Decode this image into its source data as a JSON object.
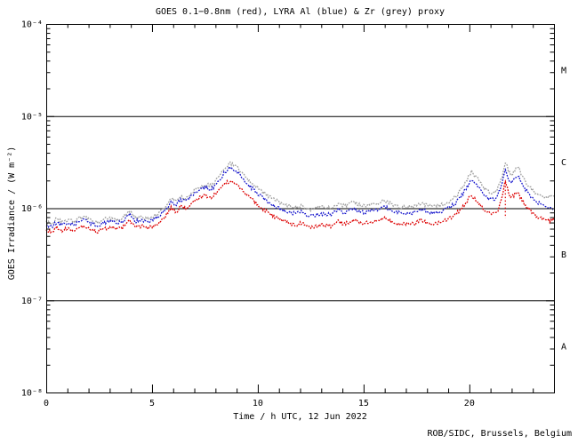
{
  "header": {
    "title": "GOES 0.1−0.8nm (red), LYRA Al (blue) & Zr (grey) proxy"
  },
  "footer": {
    "credit": "ROB/SIDC, Brussels, Belgium"
  },
  "chart_data": {
    "type": "line",
    "title": "GOES 0.1−0.8nm (red), LYRA Al (blue) & Zr (grey) proxy",
    "xlabel": "Time / h UTC, 12 Jun 2022",
    "ylabel": "GOES Irradiance / (W m⁻²)",
    "x_range_hours": [
      0,
      24
    ],
    "x_major_tick_hours": [
      0,
      5,
      10,
      15,
      20
    ],
    "x_major_tick_labels": [
      "0",
      "5",
      "10",
      "15",
      "20"
    ],
    "x_minor_step_hours": 1,
    "y_scale": "log",
    "y_range_wm2": [
      1e-08,
      0.0001
    ],
    "y_decade_exponents": [
      -4,
      -5,
      -6,
      -7,
      -8
    ],
    "y_decade_labels": [
      "10⁻⁴",
      "10⁻⁵",
      "10⁻⁶",
      "10⁻⁷",
      "10⁻⁸"
    ],
    "class_boundary_lines_wm2": [
      1e-05,
      1e-06,
      1e-07
    ],
    "flare_class_labels": [
      "M",
      "C",
      "B",
      "A"
    ],
    "grid": "off",
    "legend_position": "in-title",
    "colors": {
      "red": "#dd0000",
      "blue": "#1414cc",
      "grey": "#9e9e9e",
      "axis": "#000000"
    },
    "x_hours": [
      0,
      0.25,
      0.5,
      0.7,
      1.0,
      1.3,
      1.6,
      1.85,
      2.1,
      2.4,
      2.7,
      3.0,
      3.3,
      3.6,
      3.95,
      4.2,
      4.5,
      4.8,
      5.1,
      5.35,
      5.6,
      5.9,
      6.15,
      6.35,
      6.6,
      6.9,
      7.2,
      7.5,
      7.8,
      8.0,
      8.2,
      8.45,
      8.7,
      8.95,
      9.2,
      9.5,
      9.8,
      10.2,
      10.6,
      11.0,
      11.4,
      11.8,
      12.1,
      12.4,
      12.8,
      13.1,
      13.5,
      13.8,
      14.1,
      14.55,
      14.9,
      15.3,
      15.6,
      16.0,
      16.4,
      16.8,
      17.1,
      17.4,
      17.7,
      18.0,
      18.4,
      18.8,
      19.1,
      19.4,
      19.7,
      20.1,
      20.4,
      20.7,
      21.0,
      21.3,
      21.55,
      21.7,
      21.85,
      22.0,
      22.15,
      22.3,
      22.5,
      22.75,
      23.0,
      23.3,
      23.6,
      23.8,
      24.0
    ],
    "series": [
      {
        "name": "LYRA Zr proxy",
        "color_key": "grey",
        "values_wm2": [
          7.1e-07,
          6.8e-07,
          7.7e-07,
          7.1e-07,
          7.5e-07,
          7.1e-07,
          7.9e-07,
          8e-07,
          7.4e-07,
          7e-07,
          7.5e-07,
          7.9e-07,
          7.6e-07,
          7.7e-07,
          9.3e-07,
          7.8e-07,
          8e-07,
          7.7e-07,
          8.2e-07,
          8.9e-07,
          1.02e-06,
          1.28e-06,
          1.17e-06,
          1.35e-06,
          1.28e-06,
          1.5e-06,
          1.68e-06,
          1.82e-06,
          1.74e-06,
          1.95e-06,
          2.25e-06,
          2.8e-06,
          3.1e-06,
          2.85e-06,
          2.5e-06,
          2.1e-06,
          1.8e-06,
          1.52e-06,
          1.3e-06,
          1.17e-06,
          1.08e-06,
          1.02e-06,
          1.07e-06,
          9.7e-07,
          1e-06,
          1.02e-06,
          1e-06,
          1.13e-06,
          1.05e-06,
          1.17e-06,
          1.06e-06,
          1.09e-06,
          1.11e-06,
          1.21e-06,
          1.09e-06,
          1.02e-06,
          1.06e-06,
          1.04e-06,
          1.14e-06,
          1.07e-06,
          1.04e-06,
          1.11e-06,
          1.2e-06,
          1.37e-06,
          1.7e-06,
          2.5e-06,
          2.05e-06,
          1.65e-06,
          1.48e-06,
          1.53e-06,
          2.2e-06,
          3.15e-06,
          2.55e-06,
          2.3e-06,
          2.55e-06,
          2.85e-06,
          2.2e-06,
          1.8e-06,
          1.55e-06,
          1.38e-06,
          1.3e-06,
          1.33e-06,
          1.4e-06
        ]
      },
      {
        "name": "LYRA Al proxy",
        "color_key": "blue",
        "values_wm2": [
          6.6e-07,
          6.3e-07,
          7.1e-07,
          6.6e-07,
          6.9e-07,
          6.6e-07,
          7.3e-07,
          7.4e-07,
          6.8e-07,
          6.5e-07,
          6.9e-07,
          7.3e-07,
          7e-07,
          7.1e-07,
          8.6e-07,
          7.2e-07,
          7.4e-07,
          7.1e-07,
          7.6e-07,
          8.2e-07,
          9.4e-07,
          1.18e-06,
          1.08e-06,
          1.25e-06,
          1.18e-06,
          1.38e-06,
          1.55e-06,
          1.68e-06,
          1.6e-06,
          1.8e-06,
          2.05e-06,
          2.5e-06,
          2.75e-06,
          2.55e-06,
          2.2e-06,
          1.85e-06,
          1.58e-06,
          1.32e-06,
          1.12e-06,
          1e-06,
          9.2e-07,
          8.7e-07,
          9.1e-07,
          8.2e-07,
          8.5e-07,
          8.7e-07,
          8.5e-07,
          9.7e-07,
          8.9e-07,
          1e-06,
          9e-07,
          9.3e-07,
          9.5e-07,
          1.04e-06,
          9.3e-07,
          8.7e-07,
          9.1e-07,
          8.9e-07,
          9.8e-07,
          9.1e-07,
          8.9e-07,
          9.5e-07,
          1.03e-06,
          1.17e-06,
          1.45e-06,
          2.05e-06,
          1.7e-06,
          1.38e-06,
          1.24e-06,
          1.28e-06,
          1.85e-06,
          2.65e-06,
          2.1e-06,
          1.9e-06,
          2.1e-06,
          2.3e-06,
          1.8e-06,
          1.5e-06,
          1.28e-06,
          1.13e-06,
          1.06e-06,
          1.03e-06,
          1e-06
        ]
      },
      {
        "name": "GOES 0.1-0.8nm",
        "color_key": "red",
        "values_wm2": [
          5.8e-07,
          5.5e-07,
          6.2e-07,
          5.7e-07,
          6e-07,
          5.7e-07,
          6.3e-07,
          6.4e-07,
          5.8e-07,
          5.5e-07,
          5.9e-07,
          6.3e-07,
          6e-07,
          6.1e-07,
          7.4e-07,
          6.2e-07,
          6.4e-07,
          6.1e-07,
          6.5e-07,
          7e-07,
          8e-07,
          1e-06,
          9.2e-07,
          1.05e-06,
          1e-06,
          1.15e-06,
          1.28e-06,
          1.38e-06,
          1.32e-06,
          1.45e-06,
          1.6e-06,
          1.85e-06,
          1.98e-06,
          1.85e-06,
          1.62e-06,
          1.4e-06,
          1.2e-06,
          1e-06,
          8.6e-07,
          7.6e-07,
          7e-07,
          6.6e-07,
          6.9e-07,
          6.2e-07,
          6.4e-07,
          6.6e-07,
          6.4e-07,
          7.3e-07,
          6.7e-07,
          7.5e-07,
          6.8e-07,
          7e-07,
          7.2e-07,
          7.9e-07,
          7e-07,
          6.6e-07,
          6.9e-07,
          6.7e-07,
          7.4e-07,
          6.9e-07,
          6.7e-07,
          7.2e-07,
          7.8e-07,
          8.8e-07,
          1.05e-06,
          1.38e-06,
          1.18e-06,
          9.6e-07,
          8.6e-07,
          8.8e-07,
          1.3e-06,
          2e-06,
          1.45e-06,
          1.3e-06,
          1.42e-06,
          1.5e-06,
          1.2e-06,
          1e-06,
          8.8e-07,
          7.9e-07,
          7.5e-07,
          7.3e-07,
          7.6e-07
        ]
      }
    ],
    "gap_marker": {
      "series": "GOES 0.1-0.8nm",
      "t_hours": 21.7,
      "from_wm2": 1.9e-06,
      "to_wm2": 7.8e-07
    }
  }
}
